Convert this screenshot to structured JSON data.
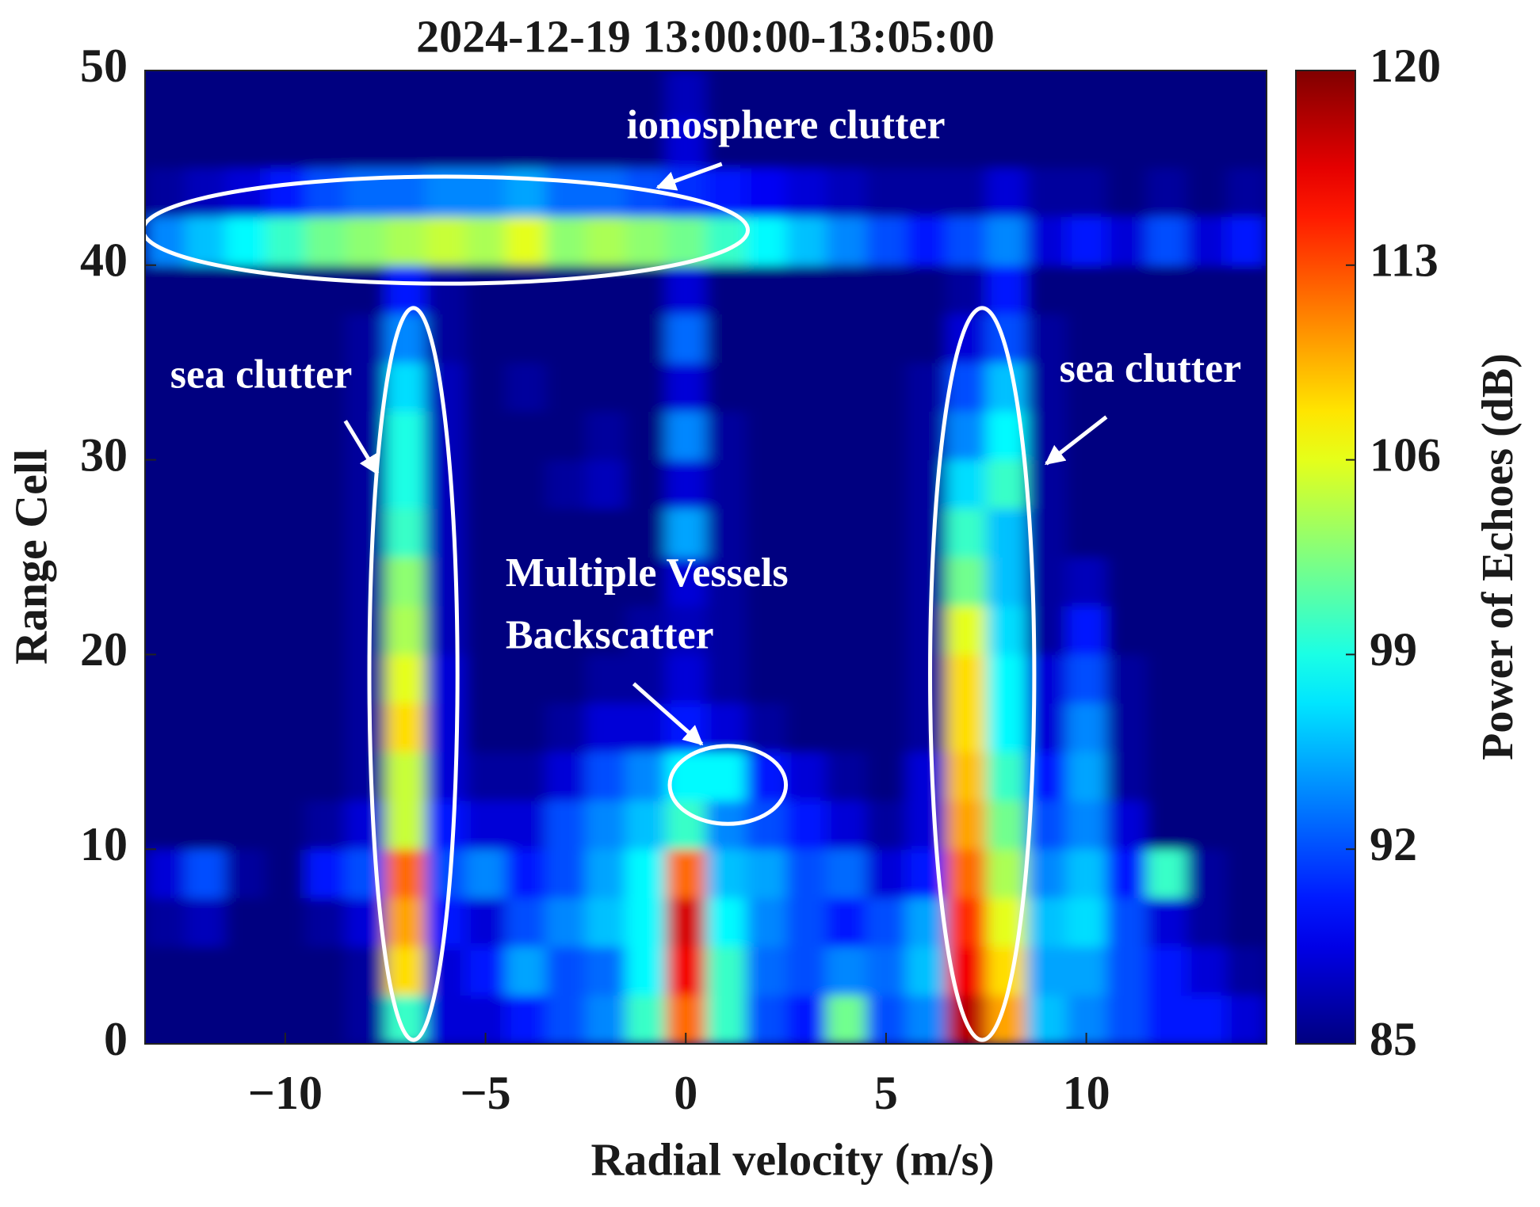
{
  "chart_data": {
    "type": "heatmap",
    "title": "2024-12-19 13:00:00-13:05:00",
    "xlabel": "Radial velocity (m/s)",
    "ylabel": "Range Cell",
    "colorbar_label": "Power of Echoes (dB)",
    "colormap": "jet",
    "xlim": [
      -13.5,
      14.5
    ],
    "xticks": [
      {
        "value": -10,
        "label": "−10"
      },
      {
        "value": -5,
        "label": "−5"
      },
      0,
      5,
      10
    ],
    "ylim": [
      0,
      50
    ],
    "yticks": [
      0,
      10,
      20,
      30,
      40,
      50
    ],
    "clim": [
      85,
      120
    ],
    "cticks": [
      85,
      92,
      99,
      106,
      113,
      120
    ],
    "x": [
      -13,
      -12,
      -11,
      -10,
      -9,
      -8,
      -7,
      -6,
      -5,
      -4,
      -3,
      -2,
      -1,
      0,
      1,
      2,
      3,
      4,
      5,
      6,
      7,
      8,
      9,
      10,
      11,
      12,
      13,
      14
    ],
    "y": [
      1.25,
      3.75,
      6.25,
      8.75,
      11.25,
      13.75,
      16.25,
      18.75,
      21.25,
      23.75,
      26.25,
      28.75,
      31.25,
      33.75,
      36.25,
      38.75,
      41.25,
      43.75,
      46.25,
      48.75
    ],
    "z": [
      [
        85,
        85,
        85,
        85,
        85,
        86,
        100,
        88,
        88,
        90,
        92,
        94,
        100,
        112,
        100,
        92,
        90,
        102,
        92,
        94,
        118,
        110,
        96,
        94,
        92,
        90,
        90,
        88
      ],
      [
        85,
        85,
        85,
        85,
        85,
        86,
        108,
        88,
        90,
        95,
        92,
        93,
        98,
        116,
        100,
        93,
        92,
        94,
        93,
        96,
        116,
        108,
        95,
        95,
        92,
        90,
        88,
        86
      ],
      [
        86,
        87,
        85,
        85,
        86,
        88,
        110,
        90,
        88,
        92,
        94,
        96,
        98,
        117,
        98,
        94,
        92,
        90,
        92,
        95,
        114,
        106,
        96,
        97,
        92,
        88,
        86,
        85
      ],
      [
        88,
        92,
        86,
        85,
        90,
        92,
        112,
        92,
        94,
        90,
        92,
        95,
        98,
        112,
        96,
        95,
        92,
        93,
        88,
        90,
        112,
        104,
        94,
        96,
        90,
        100,
        86,
        85
      ],
      [
        85,
        85,
        85,
        85,
        86,
        88,
        105,
        90,
        88,
        88,
        92,
        94,
        96,
        100,
        94,
        92,
        90,
        88,
        86,
        88,
        110,
        102,
        92,
        94,
        88,
        85,
        85,
        85
      ],
      [
        85,
        85,
        85,
        85,
        85,
        86,
        105,
        88,
        86,
        86,
        88,
        92,
        94,
        98,
        98,
        90,
        88,
        86,
        85,
        88,
        109,
        100,
        90,
        95,
        86,
        85,
        85,
        85
      ],
      [
        85,
        85,
        85,
        85,
        85,
        86,
        108,
        88,
        85,
        85,
        86,
        88,
        88,
        90,
        88,
        86,
        85,
        85,
        85,
        86,
        108,
        98,
        88,
        94,
        86,
        85,
        85,
        85
      ],
      [
        85,
        85,
        85,
        85,
        85,
        86,
        106,
        88,
        85,
        85,
        85,
        86,
        86,
        88,
        86,
        85,
        85,
        85,
        85,
        86,
        108,
        98,
        88,
        92,
        86,
        85,
        85,
        85
      ],
      [
        85,
        85,
        85,
        85,
        85,
        86,
        104,
        87,
        85,
        85,
        85,
        85,
        86,
        87,
        86,
        85,
        85,
        85,
        85,
        86,
        106,
        97,
        86,
        90,
        85,
        85,
        85,
        85
      ],
      [
        85,
        85,
        85,
        85,
        85,
        86,
        103,
        87,
        85,
        85,
        85,
        85,
        85,
        88,
        86,
        85,
        85,
        85,
        85,
        86,
        102,
        96,
        86,
        87,
        85,
        85,
        85,
        85
      ],
      [
        85,
        85,
        85,
        85,
        85,
        86,
        100,
        87,
        85,
        85,
        85,
        85,
        85,
        95,
        86,
        85,
        85,
        85,
        85,
        86,
        100,
        96,
        86,
        85,
        85,
        85,
        85,
        85
      ],
      [
        85,
        85,
        85,
        85,
        85,
        86,
        99,
        87,
        85,
        85,
        86,
        87,
        85,
        88,
        86,
        85,
        85,
        85,
        85,
        86,
        97,
        100,
        86,
        85,
        85,
        85,
        85,
        85
      ],
      [
        85,
        85,
        85,
        85,
        85,
        86,
        99,
        87,
        85,
        85,
        85,
        86,
        85,
        94,
        86,
        85,
        85,
        85,
        85,
        86,
        94,
        98,
        86,
        85,
        85,
        85,
        85,
        85
      ],
      [
        85,
        85,
        85,
        85,
        85,
        86,
        97,
        87,
        85,
        86,
        85,
        85,
        85,
        88,
        85,
        85,
        85,
        85,
        85,
        86,
        92,
        96,
        86,
        85,
        85,
        85,
        85,
        85
      ],
      [
        85,
        85,
        85,
        85,
        85,
        86,
        94,
        86,
        85,
        85,
        85,
        85,
        85,
        93,
        85,
        85,
        85,
        85,
        85,
        85,
        88,
        92,
        86,
        85,
        85,
        85,
        85,
        85
      ],
      [
        85,
        85,
        85,
        85,
        85,
        85,
        90,
        86,
        85,
        85,
        85,
        85,
        85,
        88,
        85,
        85,
        85,
        85,
        85,
        85,
        86,
        90,
        85,
        85,
        85,
        85,
        85,
        85
      ],
      [
        94,
        96,
        98,
        100,
        102,
        103,
        104,
        105,
        104,
        106,
        103,
        104,
        103,
        102,
        100,
        98,
        96,
        94,
        92,
        90,
        92,
        94,
        88,
        90,
        88,
        92,
        88,
        90
      ],
      [
        86,
        87,
        88,
        90,
        92,
        93,
        93,
        94,
        94,
        95,
        93,
        93,
        92,
        91,
        90,
        89,
        88,
        87,
        86,
        86,
        86,
        88,
        86,
        86,
        85,
        86,
        85,
        86
      ],
      [
        85,
        85,
        85,
        85,
        85,
        85,
        85,
        85,
        85,
        85,
        85,
        85,
        85,
        88,
        85,
        85,
        85,
        85,
        85,
        85,
        85,
        85,
        85,
        85,
        85,
        85,
        85,
        85
      ],
      [
        85,
        85,
        85,
        85,
        85,
        85,
        85,
        85,
        85,
        85,
        85,
        85,
        85,
        87,
        85,
        85,
        85,
        85,
        85,
        85,
        85,
        85,
        85,
        85,
        85,
        85,
        85,
        85
      ]
    ],
    "annotations": [
      "ionosphere clutter",
      "sea clutter",
      "sea clutter",
      "Multiple Vessels",
      "Backscatter"
    ]
  }
}
